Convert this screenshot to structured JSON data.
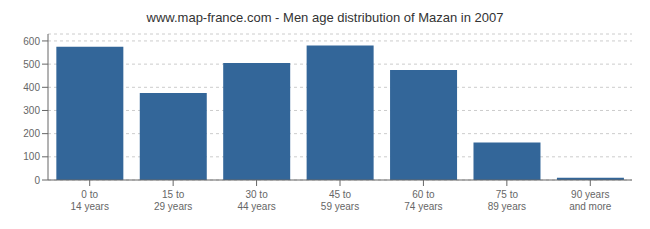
{
  "chart_data": {
    "type": "bar",
    "title": "www.map-france.com - Men age distribution of Mazan in 2007",
    "categories": [
      "0 to 14 years",
      "15 to 29 years",
      "30 to 44 years",
      "45 to 59 years",
      "60 to 74 years",
      "75 to 89 years",
      "90 years and more"
    ],
    "values": [
      575,
      375,
      505,
      580,
      475,
      162,
      10
    ],
    "color": "#336699",
    "ylim": [
      0,
      630
    ],
    "yticks": [
      0,
      100,
      200,
      300,
      400,
      500,
      600
    ],
    "grid": true
  }
}
